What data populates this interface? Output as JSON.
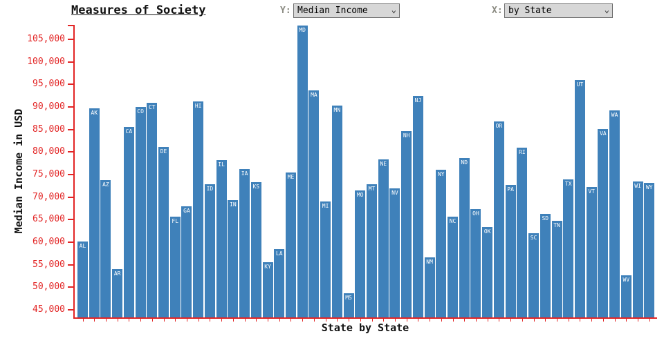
{
  "header": {
    "title": "Measures of Society",
    "y_control": {
      "label": "Y:",
      "selected": "Median Income"
    },
    "x_control": {
      "label": "X:",
      "selected": "by State"
    }
  },
  "chart_data": {
    "type": "bar",
    "title": "Measures of Society",
    "xlabel": "State by State",
    "ylabel": "Median Income in USD",
    "ylim": [
      45000,
      105000
    ],
    "ytick_step": 5000,
    "grid": false,
    "legend_position": "none",
    "bar_color": "#3f81ba",
    "bar_label_color": "#ffffff",
    "axis_color": "#e22424",
    "categories": [
      "AL",
      "AK",
      "AZ",
      "AR",
      "CA",
      "CO",
      "CT",
      "DE",
      "FL",
      "GA",
      "HI",
      "ID",
      "IL",
      "IN",
      "IA",
      "KS",
      "KY",
      "LA",
      "ME",
      "MD",
      "MA",
      "MI",
      "MN",
      "MS",
      "MO",
      "MT",
      "NE",
      "NV",
      "NH",
      "NJ",
      "NM",
      "NY",
      "NC",
      "ND",
      "OH",
      "OK",
      "OR",
      "PA",
      "RI",
      "SC",
      "SD",
      "TN",
      "TX",
      "UT",
      "VT",
      "VA",
      "WA",
      "WV",
      "WI",
      "WY"
    ],
    "values": [
      60100,
      89700,
      73800,
      54100,
      85600,
      90000,
      90900,
      81100,
      65700,
      67900,
      91200,
      72900,
      78200,
      69400,
      76300,
      73300,
      55600,
      58500,
      75400,
      108100,
      93600,
      69100,
      90300,
      48700,
      71500,
      72800,
      78400,
      71900,
      84600,
      92400,
      56600,
      76100,
      65600,
      78600,
      67300,
      63400,
      86800,
      72700,
      80900,
      62000,
      66200,
      64700,
      73900,
      96000,
      72300,
      85100,
      89300,
      52600,
      73400,
      73200
    ]
  }
}
